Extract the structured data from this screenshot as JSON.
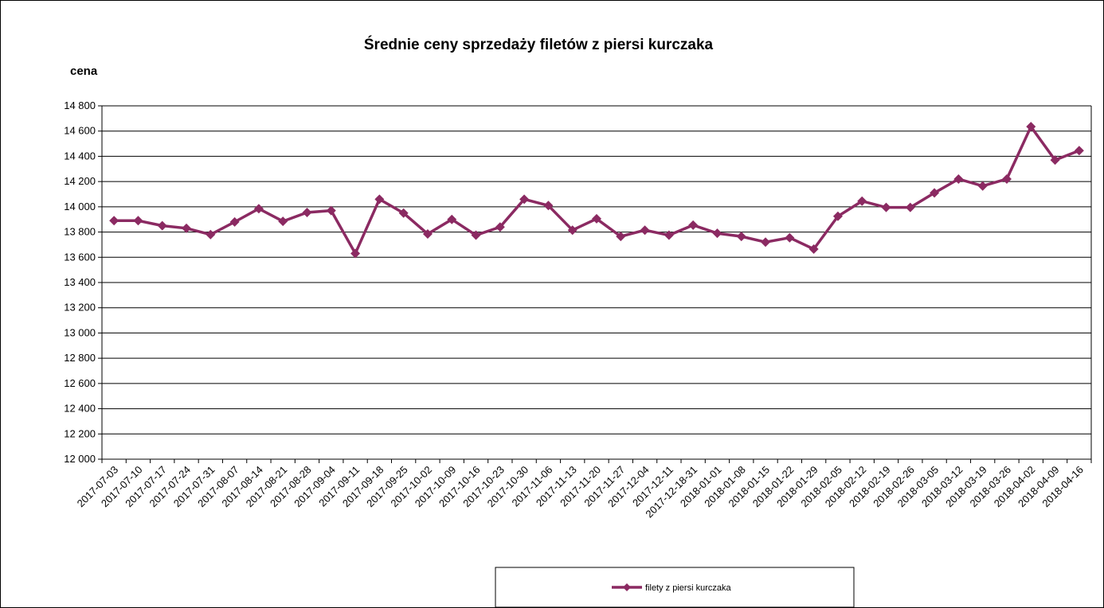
{
  "chart_data": {
    "type": "line",
    "title": "Średnie ceny sprzedaży filetów z piersi kurczaka",
    "y_label": "cena",
    "categories": [
      "2017-07-03",
      "2017-07-10",
      "2017-07-17",
      "2017-07-24",
      "2017-07-31",
      "2017-08-07",
      "2017-08-14",
      "2017-08-21",
      "2017-08-28",
      "2017-09-04",
      "2017-09-11",
      "2017-09-18",
      "2017-09-25",
      "2017-10-02",
      "2017-10-09",
      "2017-10-16",
      "2017-10-23",
      "2017-10-30",
      "2017-11-06",
      "2017-11-13",
      "2017-11-20",
      "2017-11-27",
      "2017-12-04",
      "2017-12-11",
      "2017-12-18-31",
      "2018-01-01",
      "2018-01-08",
      "2018-01-15",
      "2018-01-22",
      "2018-01-29",
      "2018-02-05",
      "2018-02-12",
      "2018-02-19",
      "2018-02-26",
      "2018-03-05",
      "2018-03-12",
      "2018-03-19",
      "2018-03-26",
      "2018-04-02",
      "2018-04-09",
      "2018-04-16"
    ],
    "series": [
      {
        "name": "filety z piersi kurczaka",
        "color": "#8b2a62",
        "values": [
          13890,
          13890,
          13850,
          13830,
          13780,
          13880,
          13985,
          13885,
          13955,
          13970,
          13630,
          14060,
          13950,
          13785,
          13900,
          13775,
          13840,
          14060,
          14010,
          13815,
          13905,
          13765,
          13815,
          13775,
          13855,
          13790,
          13765,
          13720,
          13755,
          13665,
          13925,
          14045,
          13995,
          13995,
          14110,
          14220,
          14165,
          14220,
          14635,
          14370,
          14445
        ]
      }
    ],
    "ylim": [
      12000,
      14800
    ],
    "yticks": [
      {
        "value": 12000,
        "label": "12 000"
      },
      {
        "value": 12200,
        "label": "12 200"
      },
      {
        "value": 12400,
        "label": "12 400"
      },
      {
        "value": 12600,
        "label": "12 600"
      },
      {
        "value": 12800,
        "label": "12 800"
      },
      {
        "value": 13000,
        "label": "13 000"
      },
      {
        "value": 13200,
        "label": "13 200"
      },
      {
        "value": 13400,
        "label": "13 400"
      },
      {
        "value": 13600,
        "label": "13 600"
      },
      {
        "value": 13800,
        "label": "13 800"
      },
      {
        "value": 14000,
        "label": "14 000"
      },
      {
        "value": 14200,
        "label": "14 200"
      },
      {
        "value": 14400,
        "label": "14 400"
      },
      {
        "value": 14600,
        "label": "14 600"
      },
      {
        "value": 14800,
        "label": "14 800"
      }
    ],
    "grid": true,
    "legend": "bottom"
  }
}
